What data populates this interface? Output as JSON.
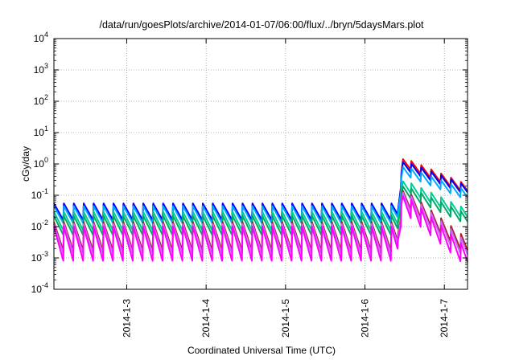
{
  "chart_data": {
    "type": "line",
    "title": "/data/run/goesPlots/archive/2014-01-07/06:00/flux/../bryn/5daysMars.plot",
    "xlabel": "Coordinated Universal Time (UTC)",
    "ylabel": "cGy/day",
    "yscale": "log",
    "ylim": [
      0.0001,
      10000
    ],
    "xlim": [
      "2014-01-02 02:00",
      "2014-01-07 07:00"
    ],
    "yticks": [
      {
        "value": 0.0001,
        "base": "10",
        "exp": "-4"
      },
      {
        "value": 0.001,
        "base": "10",
        "exp": "-3"
      },
      {
        "value": 0.01,
        "base": "10",
        "exp": "-2"
      },
      {
        "value": 0.1,
        "base": "10",
        "exp": "-1"
      },
      {
        "value": 1,
        "base": "10",
        "exp": "0"
      },
      {
        "value": 10,
        "base": "10",
        "exp": "1"
      },
      {
        "value": 100,
        "base": "10",
        "exp": "2"
      },
      {
        "value": 1000,
        "base": "10",
        "exp": "3"
      },
      {
        "value": 10000,
        "base": "10",
        "exp": "4"
      }
    ],
    "xticks": [
      "2014-1-3",
      "2014-1-4",
      "2014-1-5",
      "2014-1-6",
      "2014-1-7"
    ],
    "grid": true,
    "legend": "none",
    "pattern": {
      "period_hours": 3,
      "event_time": "2014-01-06 10:00",
      "event_peak_time": "2014-01-06 11:30"
    },
    "series": [
      {
        "color": "#ff0000",
        "peak": 0.05,
        "trough": 0.014,
        "event_peak": 1.6,
        "end_value": 0.22
      },
      {
        "color": "#0000ff",
        "peak": 0.055,
        "trough": 0.015,
        "event_peak": 1.3,
        "end_value": 0.2
      },
      {
        "color": "#00aaff",
        "peak": 0.045,
        "trough": 0.012,
        "event_peak": 0.9,
        "end_value": 0.14
      },
      {
        "color": "#00cc99",
        "peak": 0.03,
        "trough": 0.007,
        "event_peak": 0.32,
        "end_value": 0.035
      },
      {
        "color": "#00aa66",
        "peak": 0.022,
        "trough": 0.005,
        "event_peak": 0.22,
        "end_value": 0.025
      },
      {
        "color": "#aa2222",
        "peak": 0.014,
        "trough": 0.0015,
        "event_peak": 0.17,
        "end_value": 0.004
      },
      {
        "color": "#cc66ff",
        "peak": 0.012,
        "trough": 0.0012,
        "event_peak": 0.15,
        "end_value": 0.003
      },
      {
        "color": "#ff00ff",
        "peak": 0.01,
        "trough": 0.0007,
        "event_peak": 0.12,
        "end_value": 0.002
      }
    ]
  }
}
